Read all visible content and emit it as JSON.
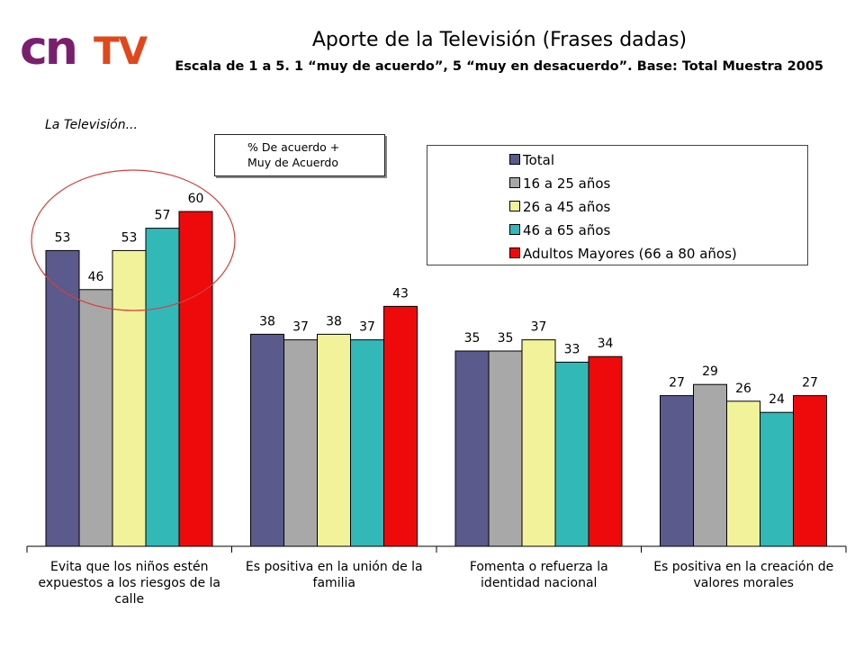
{
  "logo": {
    "part1": "cn",
    "part2": "TV"
  },
  "header": {
    "title": "Aporte de la Televisión (Frases dadas)",
    "subtitle": "Escala de 1 a 5. 1 “muy de acuerdo”, 5 “muy en desacuerdo”. Base: Total Muestra 2005"
  },
  "section_label": "La Televisión...",
  "note": {
    "line1": "% De acuerdo +",
    "line2": "Muy de Acuerdo"
  },
  "colors": {
    "series": [
      "#5a5a8c",
      "#a8a8a8",
      "#f2f29a",
      "#33b8b8",
      "#ee0a0a"
    ],
    "highlight_circle": "#d44040"
  },
  "chart_data": {
    "type": "bar",
    "categories": [
      "Evita que los niños estén expuestos a los riesgos de la calle",
      "Es positiva en la unión de la familia",
      "Fomenta o refuerza la identidad nacional",
      "Es positiva en la creación de valores morales"
    ],
    "category_lines": [
      [
        "Evita que los niños estén",
        "expuestos a los riesgos de la",
        "calle"
      ],
      [
        "Es positiva en la unión de la",
        "familia"
      ],
      [
        "Fomenta o refuerza la",
        "identidad nacional"
      ],
      [
        "Es positiva en la creación de",
        "valores morales"
      ]
    ],
    "series": [
      {
        "name": "Total",
        "values": [
          53,
          38,
          35,
          27
        ]
      },
      {
        "name": "16 a 25 años",
        "values": [
          46,
          37,
          35,
          29
        ]
      },
      {
        "name": "26 a 45 años",
        "values": [
          53,
          38,
          37,
          26
        ]
      },
      {
        "name": "46 a 65 años",
        "values": [
          57,
          37,
          33,
          24
        ]
      },
      {
        "name": "Adultos Mayores (66 a 80 años)",
        "values": [
          60,
          43,
          34,
          27
        ]
      }
    ],
    "ylim": [
      0,
      66
    ],
    "grid": false,
    "legend_position": "top-right",
    "data_labels": true,
    "highlighted_category": "Evita que los niños estén expuestos a los riesgos de la calle"
  }
}
